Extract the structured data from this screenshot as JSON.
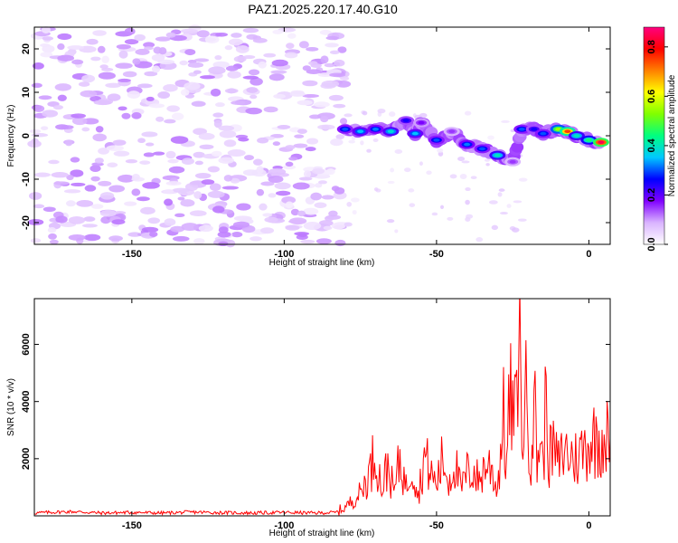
{
  "title": "PAZ1.2025.220.17.40.G10",
  "chart_data": [
    {
      "type": "heatmap",
      "title": "PAZ1.2025.220.17.40.G10",
      "xlabel": "Height of straight line (km)",
      "ylabel": "Frequency (Hz)",
      "xlim": [
        -182,
        7
      ],
      "ylim": [
        -25,
        25
      ],
      "x_ticks": [
        -150,
        -100,
        -50,
        0
      ],
      "y_ticks": [
        -20,
        -10,
        0,
        10,
        20
      ],
      "colorbar": {
        "label": "Normalized spectral amplitude",
        "range": [
          0,
          0.88
        ],
        "ticks": [
          0.0,
          0.2,
          0.4,
          0.6,
          0.8
        ],
        "colormap": [
          "#ffffff",
          "#d9b3ff",
          "#8000ff",
          "#0000ff",
          "#00c8ff",
          "#00ff80",
          "#80ff00",
          "#ffff00",
          "#ff8000",
          "#ff0000",
          "#ff0080"
        ]
      },
      "noise_region": {
        "x_range": [
          -182,
          -80
        ],
        "freq_range": [
          -25,
          25
        ],
        "amplitude": [
          0.02,
          0.12
        ]
      },
      "signal_track": [
        {
          "x": -80,
          "freq": 1.5,
          "amp": 0.3
        },
        {
          "x": -75,
          "freq": 1.0,
          "amp": 0.35
        },
        {
          "x": -70,
          "freq": 1.5,
          "amp": 0.32
        },
        {
          "x": -65,
          "freq": 1.0,
          "amp": 0.38
        },
        {
          "x": -60,
          "freq": 3.5,
          "amp": 0.25
        },
        {
          "x": -57,
          "freq": 0.5,
          "amp": 0.35
        },
        {
          "x": -55,
          "freq": 3.0,
          "amp": 0.18
        },
        {
          "x": -50,
          "freq": -1.0,
          "amp": 0.3
        },
        {
          "x": -45,
          "freq": 1.0,
          "amp": 0.15
        },
        {
          "x": -40,
          "freq": -2.0,
          "amp": 0.32
        },
        {
          "x": -35,
          "freq": -3.0,
          "amp": 0.3
        },
        {
          "x": -30,
          "freq": -4.5,
          "amp": 0.4
        },
        {
          "x": -25,
          "freq": -6.0,
          "amp": 0.15
        },
        {
          "x": -22,
          "freq": 1.5,
          "amp": 0.3
        },
        {
          "x": -18,
          "freq": 1.5,
          "amp": 0.25
        },
        {
          "x": -15,
          "freq": 0.5,
          "amp": 0.3
        },
        {
          "x": -10,
          "freq": 1.5,
          "amp": 0.55
        },
        {
          "x": -7,
          "freq": 1.0,
          "amp": 0.75
        },
        {
          "x": -4,
          "freq": 0.0,
          "amp": 0.4
        },
        {
          "x": 0,
          "freq": -1.0,
          "amp": 0.45
        },
        {
          "x": 4,
          "freq": -1.5,
          "amp": 0.85
        }
      ]
    },
    {
      "type": "line",
      "xlabel": "Height of straight line (km)",
      "ylabel": "SNR (10 * v/v)",
      "xlim": [
        -182,
        7
      ],
      "ylim": [
        0,
        7600
      ],
      "x_ticks": [
        -150,
        -100,
        -50,
        0
      ],
      "y_ticks": [
        2000,
        4000,
        6000
      ],
      "series": [
        {
          "color": "#ff0000",
          "x": [
            -182,
            -170,
            -160,
            -150,
            -140,
            -130,
            -120,
            -110,
            -100,
            -90,
            -83,
            -80,
            -78,
            -75,
            -72,
            -70,
            -68,
            -66,
            -64,
            -62,
            -60,
            -58,
            -56,
            -54,
            -52,
            -50,
            -48,
            -46,
            -44,
            -42,
            -40,
            -38,
            -36,
            -34,
            -32,
            -30,
            -29,
            -28,
            -27,
            -26,
            -25,
            -24,
            -23,
            -22,
            -21,
            -20,
            -19,
            -18,
            -17,
            -16,
            -15,
            -14,
            -13,
            -12,
            -10,
            -8,
            -6,
            -4,
            -2,
            0,
            2,
            4,
            7
          ],
          "y": [
            100,
            150,
            100,
            120,
            100,
            130,
            110,
            100,
            120,
            100,
            120,
            300,
            500,
            800,
            1500,
            2300,
            900,
            1800,
            800,
            2000,
            1000,
            1900,
            700,
            2100,
            1500,
            1100,
            2000,
            1200,
            1900,
            900,
            1500,
            1600,
            1200,
            1800,
            1700,
            900,
            2300,
            3400,
            1700,
            4200,
            3500,
            3300,
            7500,
            2500,
            4400,
            3400,
            2300,
            4300,
            1800,
            3000,
            1600,
            4500,
            1900,
            2400,
            1800,
            2300,
            2100,
            2000,
            2300,
            2600,
            2700,
            2800,
            2700
          ]
        }
      ]
    }
  ]
}
